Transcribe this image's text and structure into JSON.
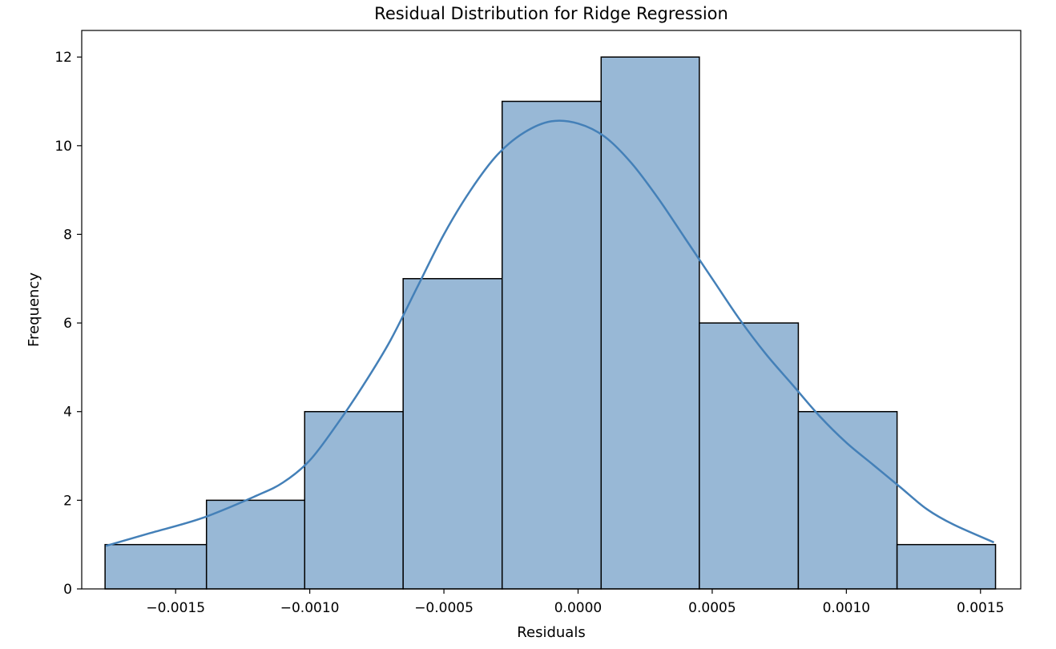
{
  "chart_data": {
    "type": "bar",
    "title": "Residual Distribution for Ridge Regression",
    "xlabel": "Residuals",
    "ylabel": "Frequency",
    "bins": [
      {
        "x0": -0.001763,
        "x1": -0.001385,
        "count": 1
      },
      {
        "x0": -0.001385,
        "x1": -0.001019,
        "count": 2
      },
      {
        "x0": -0.001019,
        "x1": -0.000652,
        "count": 4
      },
      {
        "x0": -0.000652,
        "x1": -0.000283,
        "count": 7
      },
      {
        "x0": -0.000283,
        "x1": 8.6e-05,
        "count": 11
      },
      {
        "x0": 8.6e-05,
        "x1": 0.000452,
        "count": 12
      },
      {
        "x0": 0.000452,
        "x1": 0.000821,
        "count": 6
      },
      {
        "x0": 0.000821,
        "x1": 0.001189,
        "count": 4
      },
      {
        "x0": 0.001189,
        "x1": 0.001556,
        "count": 1
      }
    ],
    "kde": {
      "name": "KDE",
      "x": [
        -0.00176,
        -0.0016,
        -0.0014,
        -0.0012,
        -0.0011,
        -0.001,
        -0.0009,
        -0.0008,
        -0.0007,
        -0.0006,
        -0.0005,
        -0.0004,
        -0.0003,
        -0.0002,
        -0.0001,
        0.0,
        0.0001,
        0.0002,
        0.0003,
        0.0004,
        0.0005,
        0.0006,
        0.0007,
        0.0008,
        0.0009,
        0.001,
        0.0011,
        0.0012,
        0.0013,
        0.0014,
        0.00155
      ],
      "y": [
        0.97,
        1.25,
        1.6,
        2.1,
        2.4,
        2.9,
        3.7,
        4.6,
        5.6,
        6.8,
        8.0,
        9.0,
        9.8,
        10.3,
        10.55,
        10.5,
        10.2,
        9.6,
        8.8,
        7.9,
        7.0,
        6.1,
        5.3,
        4.6,
        3.9,
        3.3,
        2.8,
        2.3,
        1.8,
        1.45,
        1.05
      ]
    },
    "xlim": [
      -0.00185,
      0.00165
    ],
    "ylim": [
      0,
      12.6
    ],
    "xticks": [
      -0.0015,
      -0.001,
      -0.0005,
      0.0,
      0.0005,
      0.001,
      0.0015
    ],
    "xtick_labels": [
      "−0.0015",
      "−0.0010",
      "−0.0005",
      "0.0000",
      "0.0005",
      "0.0010",
      "0.0015"
    ],
    "yticks": [
      0,
      2,
      4,
      6,
      8,
      10,
      12
    ],
    "ytick_labels": [
      "0",
      "2",
      "4",
      "6",
      "8",
      "10",
      "12"
    ],
    "grid": false,
    "colors": {
      "bar_fill": "#98b8d6",
      "bar_edge": "#000000",
      "kde_line": "#4480b8"
    }
  }
}
